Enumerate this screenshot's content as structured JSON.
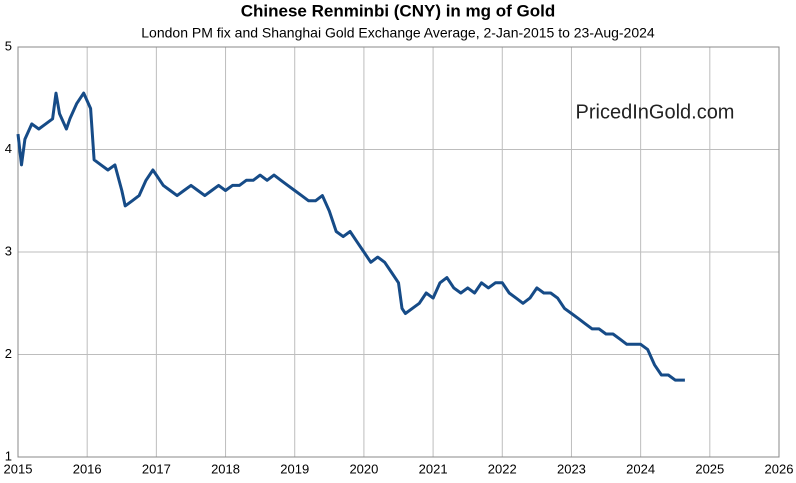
{
  "chart_data": {
    "type": "line",
    "title": "Chinese Renminbi (CNY) in mg of Gold",
    "subtitle": "London PM fix and Shanghai Gold Exchange Average, 2-Jan-2015 to 23-Aug-2024",
    "annotation": "PricedInGold.com",
    "x": [
      2015.0,
      2015.05,
      2015.1,
      2015.2,
      2015.3,
      2015.4,
      2015.5,
      2015.55,
      2015.6,
      2015.7,
      2015.75,
      2015.85,
      2015.95,
      2016.05,
      2016.1,
      2016.2,
      2016.3,
      2016.4,
      2016.5,
      2016.55,
      2016.65,
      2016.75,
      2016.85,
      2016.95,
      2017.0,
      2017.1,
      2017.2,
      2017.3,
      2017.4,
      2017.5,
      2017.6,
      2017.7,
      2017.8,
      2017.9,
      2018.0,
      2018.1,
      2018.2,
      2018.3,
      2018.4,
      2018.5,
      2018.6,
      2018.7,
      2018.8,
      2018.9,
      2019.0,
      2019.1,
      2019.2,
      2019.3,
      2019.4,
      2019.5,
      2019.6,
      2019.7,
      2019.8,
      2019.9,
      2020.0,
      2020.1,
      2020.2,
      2020.3,
      2020.4,
      2020.5,
      2020.55,
      2020.6,
      2020.7,
      2020.8,
      2020.9,
      2021.0,
      2021.1,
      2021.2,
      2021.3,
      2021.4,
      2021.5,
      2021.6,
      2021.7,
      2021.8,
      2021.9,
      2022.0,
      2022.1,
      2022.2,
      2022.3,
      2022.4,
      2022.5,
      2022.6,
      2022.7,
      2022.8,
      2022.9,
      2023.0,
      2023.1,
      2023.2,
      2023.3,
      2023.4,
      2023.5,
      2023.6,
      2023.7,
      2023.8,
      2023.9,
      2024.0,
      2024.1,
      2024.2,
      2024.3,
      2024.4,
      2024.5,
      2024.6,
      2024.64
    ],
    "series": [
      {
        "color": "#164b87",
        "values": [
          4.15,
          3.85,
          4.1,
          4.25,
          4.2,
          4.25,
          4.3,
          4.55,
          4.35,
          4.2,
          4.3,
          4.45,
          4.55,
          4.4,
          3.9,
          3.85,
          3.8,
          3.85,
          3.6,
          3.45,
          3.5,
          3.55,
          3.7,
          3.8,
          3.75,
          3.65,
          3.6,
          3.55,
          3.6,
          3.65,
          3.6,
          3.55,
          3.6,
          3.65,
          3.6,
          3.65,
          3.65,
          3.7,
          3.7,
          3.75,
          3.7,
          3.75,
          3.7,
          3.65,
          3.6,
          3.55,
          3.5,
          3.5,
          3.55,
          3.4,
          3.2,
          3.15,
          3.2,
          3.1,
          3.0,
          2.9,
          2.95,
          2.9,
          2.8,
          2.7,
          2.45,
          2.4,
          2.45,
          2.5,
          2.6,
          2.55,
          2.7,
          2.75,
          2.65,
          2.6,
          2.65,
          2.6,
          2.7,
          2.65,
          2.7,
          2.7,
          2.6,
          2.55,
          2.5,
          2.55,
          2.65,
          2.6,
          2.6,
          2.55,
          2.45,
          2.4,
          2.35,
          2.3,
          2.25,
          2.25,
          2.2,
          2.2,
          2.15,
          2.1,
          2.1,
          2.1,
          2.05,
          1.9,
          1.8,
          1.8,
          1.75,
          1.75,
          1.75
        ]
      }
    ],
    "xlim": [
      2015,
      2026
    ],
    "xticks": [
      2015,
      2016,
      2017,
      2018,
      2019,
      2020,
      2021,
      2022,
      2023,
      2024,
      2025,
      2026
    ],
    "ylim": [
      1,
      5
    ],
    "yticks": [
      1,
      2,
      3,
      4,
      5
    ],
    "grid": true
  }
}
